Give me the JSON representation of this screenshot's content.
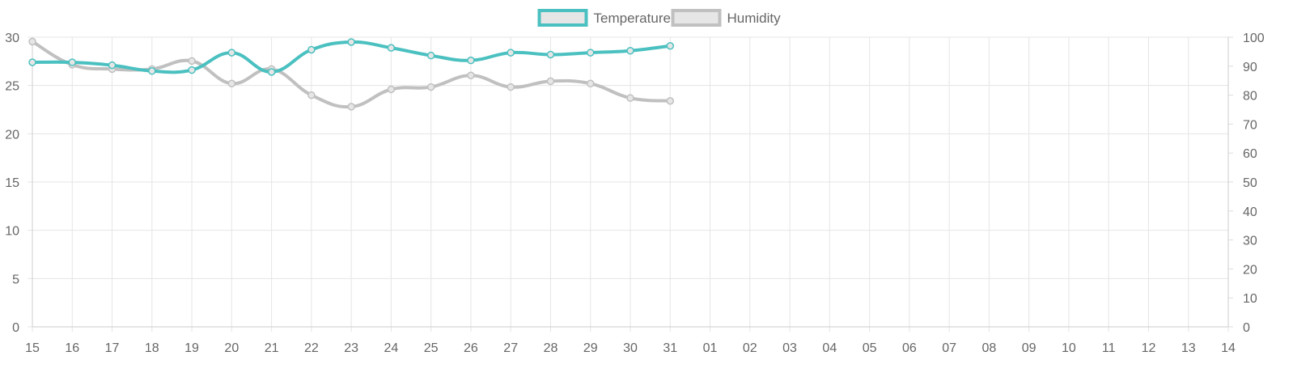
{
  "chart_data": {
    "type": "line",
    "title": "",
    "legend_position": "top-center",
    "grid": true,
    "categories": [
      "15",
      "16",
      "17",
      "18",
      "19",
      "20",
      "21",
      "22",
      "23",
      "24",
      "25",
      "26",
      "27",
      "28",
      "29",
      "30",
      "31",
      "01",
      "02",
      "03",
      "04",
      "05",
      "06",
      "07",
      "08",
      "09",
      "10",
      "11",
      "12",
      "13",
      "14"
    ],
    "y_left": {
      "min": 0,
      "max": 30,
      "ticks": [
        "0",
        "5",
        "10",
        "15",
        "20",
        "25",
        "30"
      ]
    },
    "y_right": {
      "min": 0,
      "max": 100,
      "ticks": [
        "0",
        "10",
        "20",
        "30",
        "40",
        "50",
        "60",
        "70",
        "80",
        "90",
        "100"
      ]
    },
    "series": [
      {
        "name": "Temperature",
        "axis": "left",
        "color": "#4bc0c0",
        "values": [
          27.4,
          27.4,
          27.1,
          26.5,
          26.6,
          28.4,
          26.4,
          28.7,
          29.5,
          28.9,
          28.1,
          27.6,
          28.4,
          28.2,
          28.4,
          28.6,
          29.1,
          null,
          null,
          null,
          null,
          null,
          null,
          null,
          null,
          null,
          null,
          null,
          null,
          null,
          null
        ]
      },
      {
        "name": "Humidity",
        "axis": "right",
        "color": "#c0c0c0",
        "values": [
          98.5,
          90.5,
          89.0,
          89.0,
          91.8,
          84.0,
          89.0,
          80.0,
          76.0,
          82.0,
          82.8,
          86.8,
          82.8,
          84.8,
          84.0,
          79.0,
          78.0,
          null,
          null,
          null,
          null,
          null,
          null,
          null,
          null,
          null,
          null,
          null,
          null,
          null,
          null
        ]
      }
    ]
  }
}
